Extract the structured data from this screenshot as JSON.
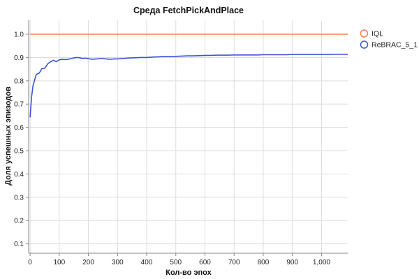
{
  "chart_data": {
    "type": "line",
    "title": "Среда FetchPickAndPlace",
    "xlabel": "Кол-во эпох",
    "ylabel": "Доля успешных эпизодов",
    "xlim": [
      -5,
      1090
    ],
    "ylim": [
      0.06,
      1.06
    ],
    "x_ticks": [
      0,
      100,
      200,
      300,
      400,
      500,
      600,
      700,
      800,
      900,
      1000
    ],
    "x_tick_labels": [
      "0",
      "100",
      "200",
      "300",
      "400",
      "500",
      "600",
      "700",
      "800",
      "900",
      "1,000"
    ],
    "y_ticks": [
      0.1,
      0.2,
      0.3,
      0.4,
      0.5,
      0.6,
      0.7,
      0.8,
      0.9,
      1.0
    ],
    "y_tick_labels": [
      "0.1",
      "0.2",
      "0.3",
      "0.4",
      "0.5",
      "0.6",
      "0.7",
      "0.8",
      "0.9",
      "1.0"
    ],
    "grid": true,
    "legend_position": "top-right",
    "series": [
      {
        "name": "IQL",
        "color": "#f58253",
        "x": [
          0,
          1090
        ],
        "y": [
          1.0,
          1.0
        ]
      },
      {
        "name": "ReBRAC_5_1",
        "color": "#3b55d4",
        "x": [
          0,
          5,
          10,
          15,
          20,
          25,
          30,
          35,
          40,
          50,
          55,
          60,
          70,
          80,
          90,
          100,
          110,
          120,
          130,
          140,
          150,
          160,
          170,
          180,
          190,
          200,
          210,
          220,
          230,
          240,
          250,
          260,
          270,
          280,
          290,
          300,
          320,
          340,
          360,
          380,
          400,
          420,
          440,
          460,
          480,
          500,
          520,
          540,
          560,
          580,
          600,
          620,
          640,
          660,
          680,
          700,
          720,
          740,
          760,
          780,
          800,
          820,
          840,
          860,
          880,
          900,
          920,
          940,
          960,
          980,
          1000,
          1020,
          1040,
          1060,
          1080,
          1090
        ],
        "y": [
          0.643,
          0.73,
          0.78,
          0.8,
          0.824,
          0.83,
          0.832,
          0.84,
          0.852,
          0.854,
          0.862,
          0.872,
          0.882,
          0.888,
          0.882,
          0.89,
          0.892,
          0.891,
          0.892,
          0.895,
          0.898,
          0.9,
          0.899,
          0.896,
          0.897,
          0.895,
          0.893,
          0.893,
          0.894,
          0.895,
          0.895,
          0.894,
          0.893,
          0.893,
          0.894,
          0.894,
          0.896,
          0.898,
          0.899,
          0.9,
          0.9,
          0.902,
          0.903,
          0.904,
          0.905,
          0.905,
          0.906,
          0.907,
          0.907,
          0.908,
          0.909,
          0.909,
          0.91,
          0.91,
          0.91,
          0.911,
          0.911,
          0.911,
          0.911,
          0.911,
          0.912,
          0.912,
          0.912,
          0.912,
          0.912,
          0.913,
          0.913,
          0.913,
          0.913,
          0.913,
          0.913,
          0.913,
          0.914,
          0.914,
          0.914,
          0.914
        ]
      }
    ]
  }
}
